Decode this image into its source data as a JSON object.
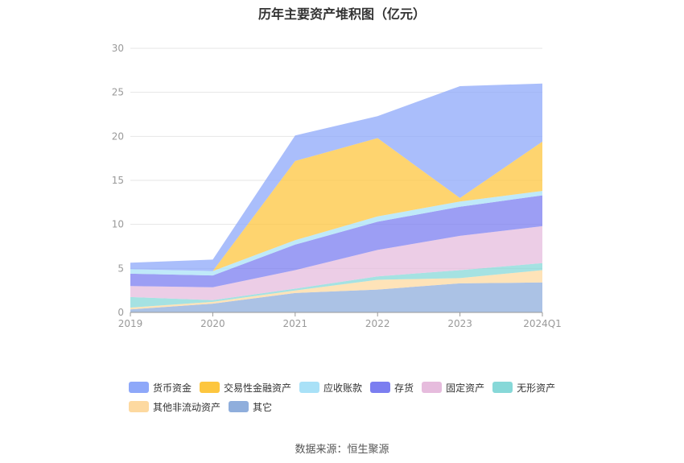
{
  "title": "历年主要资产堆积图（亿元）",
  "source": "数据来源：恒生聚源",
  "chart_data": {
    "type": "area",
    "stacked": true,
    "title": "历年主要资产堆积图（亿元）",
    "xlabel": "",
    "ylabel": "",
    "ylim": [
      0,
      30
    ],
    "yticks": [
      0,
      5,
      10,
      15,
      20,
      25,
      30
    ],
    "grid": true,
    "legend_position": "bottom",
    "categories": [
      "2019",
      "2020",
      "2021",
      "2022",
      "2023",
      "2024Q1"
    ],
    "series": [
      {
        "name": "其它",
        "color": "#8faedc",
        "values": [
          0.35,
          1.0,
          2.2,
          2.6,
          3.3,
          3.4
        ]
      },
      {
        "name": "其他非流动资产",
        "color": "#fdd9a0",
        "values": [
          0.2,
          0.2,
          0.3,
          1.1,
          0.6,
          1.4
        ]
      },
      {
        "name": "无形资产",
        "color": "#87d8d8",
        "values": [
          1.2,
          0.2,
          0.2,
          0.4,
          0.9,
          0.8
        ]
      },
      {
        "name": "固定资产",
        "color": "#e6bcdd",
        "values": [
          1.25,
          1.45,
          2.1,
          3.0,
          3.9,
          4.2
        ]
      },
      {
        "name": "存货",
        "color": "#7b7ef0",
        "values": [
          1.4,
          1.35,
          2.9,
          3.2,
          3.3,
          3.5
        ]
      },
      {
        "name": "应收账款",
        "color": "#a9e1f7",
        "values": [
          0.5,
          0.5,
          0.5,
          0.6,
          0.6,
          0.5
        ]
      },
      {
        "name": "交易性金融资产",
        "color": "#fdc63f",
        "values": [
          0.0,
          0.0,
          9.0,
          8.9,
          0.4,
          5.6
        ]
      },
      {
        "name": "货币资金",
        "color": "#8ea8f9",
        "values": [
          0.75,
          1.3,
          2.9,
          2.5,
          12.7,
          6.6
        ]
      }
    ]
  },
  "legend_order": [
    "货币资金",
    "交易性金融资产",
    "应收账款",
    "存货",
    "固定资产",
    "无形资产",
    "其他非流动资产",
    "其它"
  ]
}
